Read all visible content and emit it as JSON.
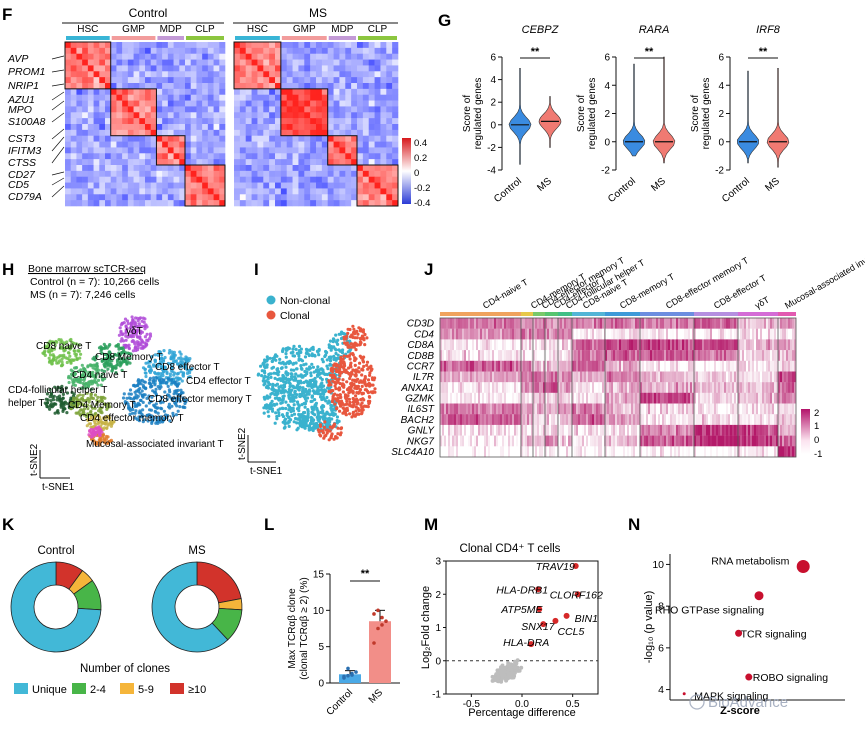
{
  "panels": {
    "F": {
      "letter": "F",
      "groups": [
        "Control",
        "MS"
      ],
      "columns": [
        "HSC",
        "GMP",
        "MDP",
        "CLP"
      ],
      "col_colors": [
        "#39b5d6",
        "#f29c9c",
        "#c39ad6",
        "#8cc63f"
      ],
      "genes": [
        "AVP",
        "PROM1",
        "NRIP1",
        "AZU1",
        "MPO",
        "S100A8",
        "CST3",
        "IFITM3",
        "CTSS",
        "CD27",
        "CD5",
        "CD79A"
      ],
      "colorbar": [
        "0.4",
        "0.2",
        "0",
        "-0.2",
        "-0.4"
      ]
    },
    "G": {
      "letter": "G",
      "genes": [
        "CEBPZ",
        "RARA",
        "IRF8"
      ],
      "ylabel": "Score of regulated genes",
      "sig": "**",
      "groups": [
        "Control",
        "MS"
      ],
      "ranges": [
        [
          -4,
          6
        ],
        [
          -2,
          6
        ],
        [
          -2,
          6
        ]
      ],
      "yticks": [
        [
          "-4",
          "-2",
          "0",
          "2",
          "4",
          "6"
        ],
        [
          "-2",
          "0",
          "2",
          "4",
          "6"
        ],
        [
          "-2",
          "0",
          "2",
          "4",
          "6"
        ]
      ]
    },
    "H": {
      "letter": "H",
      "title": "Bone marrow scTCR-seq",
      "control_line": "Control (n = 7): 10,266 cells",
      "ms_line": "MS  (n = 7): 7,246 cells",
      "clusters": [
        "γδT",
        "CD8 naive T",
        "CD8 Memory T",
        "CD4 naive T",
        "CD8 effector T",
        "CD4 effector T",
        "CD4-follicular helper T",
        "CD4 Memory T",
        "CD8 effector memory T",
        "CD4 effector memory T",
        "Mucosal-associated invariant T"
      ],
      "xaxis": "t-SNE1",
      "yaxis": "t-SNE2"
    },
    "I": {
      "letter": "I",
      "legend": [
        "Non-clonal",
        "Clonal"
      ],
      "xaxis": "t-SNE1",
      "yaxis": "t-SNE2"
    },
    "J": {
      "letter": "J",
      "groups": [
        "CD4-naive T",
        "CD4-memory T",
        "CD4-effector memory T",
        "CD4-effector T",
        "CD4-follicular helper T",
        "CD8-naive T",
        "CD8-memory T",
        "CD8-effector memory T",
        "CD8-effector T",
        "γδT",
        "Mucosal-associated invariant T cell"
      ],
      "genes": [
        "CD3D",
        "CD4",
        "CD8A",
        "CD8B",
        "CCR7",
        "IL7R",
        "ANXA1",
        "GZMK",
        "IL6ST",
        "BACH2",
        "GNLY",
        "NKG7",
        "SLC4A10"
      ],
      "colorbar": [
        "2",
        "1",
        "0",
        "-1"
      ]
    },
    "K": {
      "letter": "K",
      "caption": "Number of clones",
      "legend": [
        "Unique",
        "2-4",
        "5-9",
        "≥10"
      ]
    },
    "L": {
      "letter": "L",
      "ylabel": "Max TCRαβ clone (clonal TCRαβ ≥ 2) (%)",
      "sig": "**"
    },
    "M": {
      "letter": "M",
      "title": "Clonal CD4⁺ T cells",
      "xlabel": "Percentage difference",
      "ylabel": "Log₂Fold change",
      "labels": [
        "TRAV19",
        "HLA-DRB1",
        "CLORF162",
        "ATP5ME",
        "BIN1",
        "SNX17",
        "CCL5",
        "HLA-DRA"
      ]
    },
    "N": {
      "letter": "N",
      "ylabel": "-log₁₀ (p value)",
      "xlabel": "Z-score",
      "watermark": "BioAdvance"
    }
  },
  "chart_data": [
    {
      "panel": "F",
      "type": "heatmap",
      "title": "Correlation heatmaps",
      "groups": [
        "Control",
        "MS"
      ],
      "columns": [
        "HSC",
        "GMP",
        "MDP",
        "CLP"
      ],
      "rows": [
        "AVP",
        "PROM1",
        "NRIP1",
        "AZU1",
        "MPO",
        "S100A8",
        "CST3",
        "IFITM3",
        "CTSS",
        "CD27",
        "CD5",
        "CD79A"
      ],
      "value_range": [
        -0.4,
        0.4
      ]
    },
    {
      "panel": "G",
      "type": "violin",
      "ylabel": "Score of regulated genes",
      "categories": [
        "Control",
        "MS"
      ],
      "series": [
        {
          "name": "CEBPZ",
          "median": [
            0.0,
            0.3
          ],
          "range": [
            [
              -3.5,
              5.0
            ],
            [
              -2.0,
              2.5
            ]
          ],
          "ylim": [
            -4,
            6
          ]
        },
        {
          "name": "RARA",
          "median": [
            0.0,
            0.0
          ],
          "range": [
            [
              -1.0,
              5.5
            ],
            [
              -1.5,
              6.0
            ]
          ],
          "ylim": [
            -2,
            6
          ]
        },
        {
          "name": "IRF8",
          "median": [
            0.0,
            0.0
          ],
          "range": [
            [
              -1.5,
              5.0
            ],
            [
              -1.8,
              5.2
            ]
          ],
          "ylim": [
            -2,
            6
          ]
        }
      ]
    },
    {
      "panel": "K",
      "type": "pie",
      "legend": [
        "Unique",
        "2-4",
        "5-9",
        "≥10"
      ],
      "series": [
        {
          "name": "Control",
          "values": [
            74,
            11,
            5,
            10
          ]
        },
        {
          "name": "MS",
          "values": [
            62,
            12,
            4,
            22
          ]
        }
      ]
    },
    {
      "panel": "L",
      "type": "bar",
      "categories": [
        "Control",
        "MS"
      ],
      "values": [
        1.2,
        8.5
      ],
      "errors": [
        0.5,
        1.5
      ],
      "points": [
        [
          0.7,
          1.0,
          1.3,
          1.5,
          0.9,
          2.0,
          1.1
        ],
        [
          5.5,
          7.5,
          8.0,
          8.5,
          9.5,
          10.0,
          9.0
        ]
      ],
      "ylabel": "Max TCRαβ clone (clonal TCRαβ ≥ 2) (%)",
      "ylim": [
        0,
        15
      ],
      "yticks": [
        0,
        5,
        10,
        15
      ]
    },
    {
      "panel": "M",
      "type": "scatter",
      "title": "Clonal CD4⁺ T cells",
      "xlabel": "Percentage difference",
      "ylabel": "Log₂Fold change",
      "xlim": [
        -0.75,
        0.75
      ],
      "ylim": [
        -1,
        3
      ],
      "xticks": [
        -0.5,
        0.0,
        0.5
      ],
      "yticks": [
        -1,
        0,
        1,
        2,
        3
      ],
      "highlighted": [
        {
          "label": "TRAV19",
          "x": 0.53,
          "y": 2.85
        },
        {
          "label": "HLA-DRB1",
          "x": 0.16,
          "y": 2.15
        },
        {
          "label": "CLORF162",
          "x": 0.55,
          "y": 2.0
        },
        {
          "label": "ATP5ME",
          "x": 0.17,
          "y": 1.55
        },
        {
          "label": "BIN1",
          "x": 0.44,
          "y": 1.35
        },
        {
          "label": "SNX17",
          "x": 0.21,
          "y": 1.1
        },
        {
          "label": "CCL5",
          "x": 0.33,
          "y": 1.2
        },
        {
          "label": "HLA-DRA",
          "x": 0.09,
          "y": 0.5
        }
      ]
    },
    {
      "panel": "N",
      "type": "scatter",
      "xlabel": "Z-score",
      "ylabel": "-log₁₀ (p value)",
      "ylim": [
        3.5,
        10.5
      ],
      "yticks": [
        4,
        6,
        8,
        10
      ],
      "points": [
        {
          "label": "RNA metabolism",
          "z": 3.8,
          "y": 9.9
        },
        {
          "label": "RHO GTPase signaling",
          "z": 2.5,
          "y": 8.5
        },
        {
          "label": "TCR signaling",
          "z": 1.9,
          "y": 6.7
        },
        {
          "label": "ROBO signaling",
          "z": 2.2,
          "y": 4.6
        },
        {
          "label": "MAPK signaling",
          "z": 0.3,
          "y": 3.8
        }
      ]
    }
  ]
}
